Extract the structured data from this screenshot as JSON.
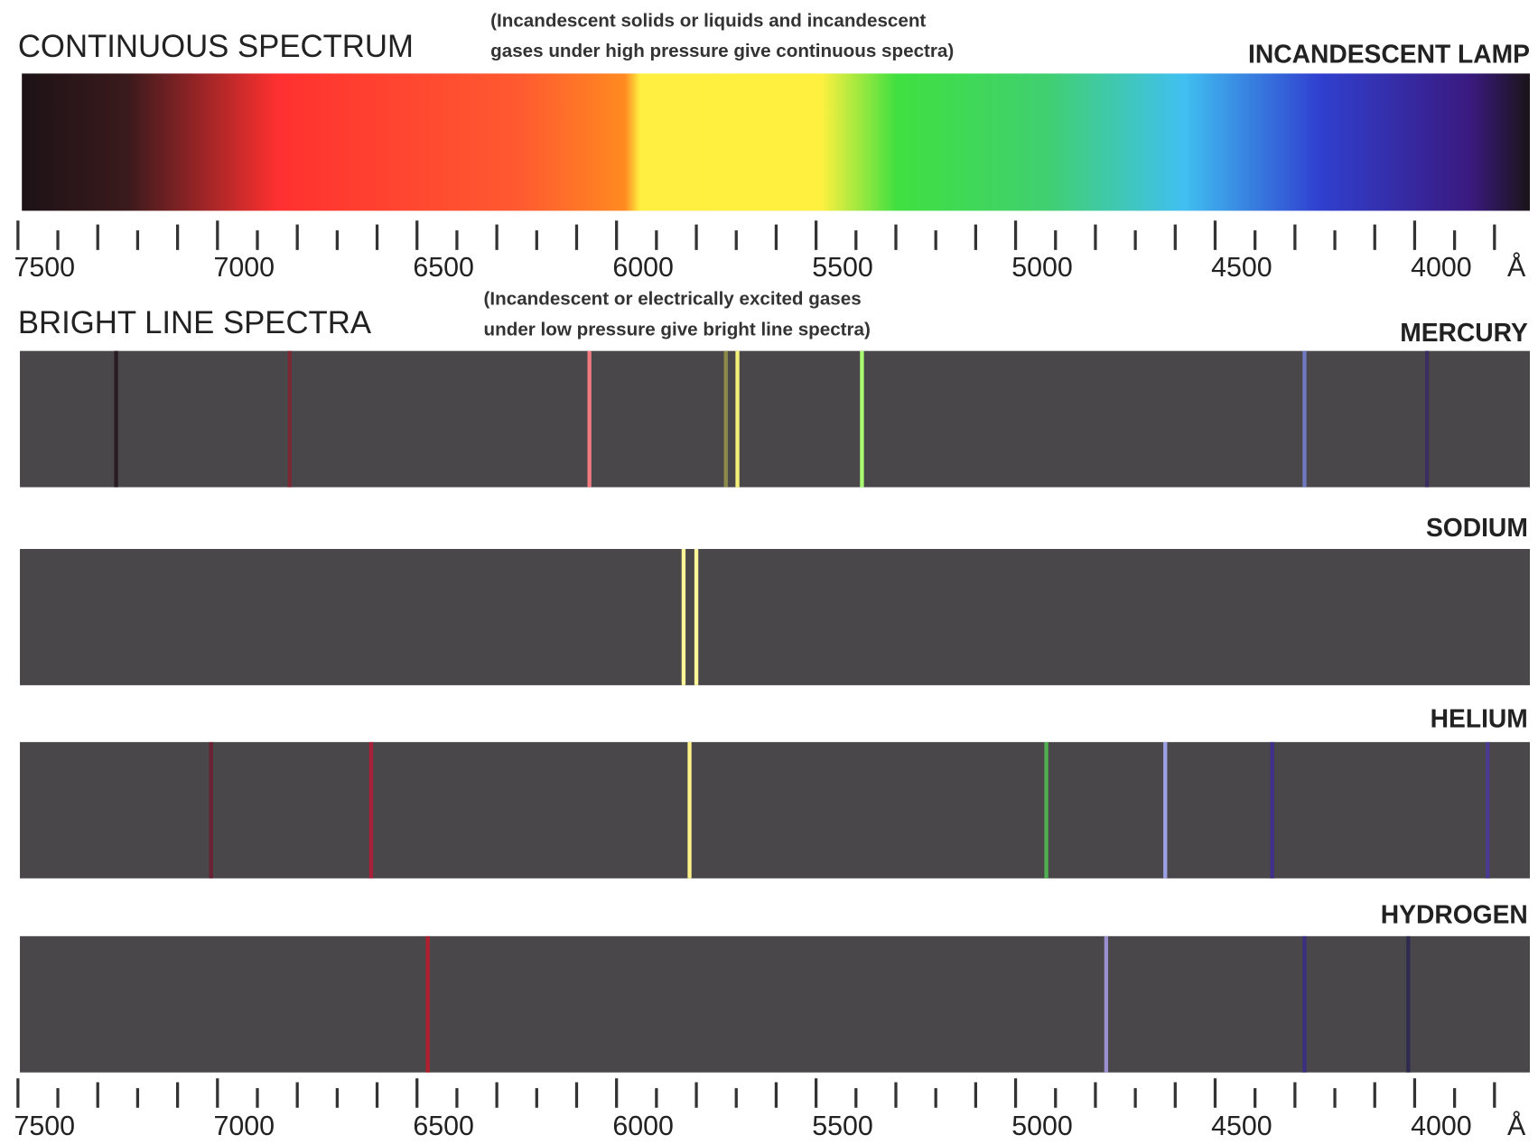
{
  "continuous": {
    "title": "CONTINUOUS SPECTRUM",
    "note": [
      "(Incandescent solids or liquids and incandescent",
      "gases under high pressure give continuous spectra)"
    ],
    "source": "INCANDESCENT LAMP"
  },
  "axis": {
    "xticks": [
      7500,
      7000,
      6500,
      6000,
      5500,
      5000,
      4500,
      4000
    ],
    "unit": "Å",
    "minor_ticks": [
      7400,
      7300,
      7200,
      7100,
      6900,
      6800,
      6700,
      6600,
      6400,
      6300,
      6200,
      6100,
      5900,
      5800,
      5700,
      5600,
      5400,
      5300,
      5200,
      5100,
      4900,
      4800,
      4700,
      4600,
      4400,
      4300,
      4200,
      4100,
      3900,
      3800
    ]
  },
  "bright": {
    "title": "BRIGHT LINE SPECTRA",
    "note": [
      "(Incandescent or electrically excited gases",
      "under low pressure give bright line spectra)"
    ]
  },
  "spectra": [
    {
      "name": "MERCURY",
      "lines": [
        {
          "wavelength": 7254,
          "color": "#2a1c22"
        },
        {
          "wavelength": 6819,
          "color": "#7a2a35"
        },
        {
          "wavelength": 6068,
          "color": "#f07a80"
        },
        {
          "wavelength": 5726,
          "color": "#8c8a4a"
        },
        {
          "wavelength": 5697,
          "color": "#f4f07a"
        },
        {
          "wavelength": 5385,
          "color": "#a8ff70"
        },
        {
          "wavelength": 4276,
          "color": "#7078c0"
        },
        {
          "wavelength": 3969,
          "color": "#3a2e60"
        }
      ]
    },
    {
      "name": "SODIUM",
      "lines": [
        {
          "wavelength": 5832,
          "color": "#fff79a"
        },
        {
          "wavelength": 5800,
          "color": "#fff79a"
        }
      ]
    },
    {
      "name": "HELIUM",
      "lines": [
        {
          "wavelength": 7016,
          "color": "#6a2232"
        },
        {
          "wavelength": 6615,
          "color": "#a8203a"
        },
        {
          "wavelength": 5817,
          "color": "#fff08a"
        },
        {
          "wavelength": 4923,
          "color": "#50b050"
        },
        {
          "wavelength": 4625,
          "color": "#9aa0e0"
        },
        {
          "wavelength": 4357,
          "color": "#40308a"
        },
        {
          "wavelength": 3817,
          "color": "#4a3a90"
        }
      ]
    },
    {
      "name": "HYDROGEN",
      "lines": [
        {
          "wavelength": 6473,
          "color": "#b0202e"
        },
        {
          "wavelength": 4773,
          "color": "#9a90d0"
        },
        {
          "wavelength": 4276,
          "color": "#3a3080"
        },
        {
          "wavelength": 4016,
          "color": "#2e2a50"
        }
      ]
    }
  ]
}
